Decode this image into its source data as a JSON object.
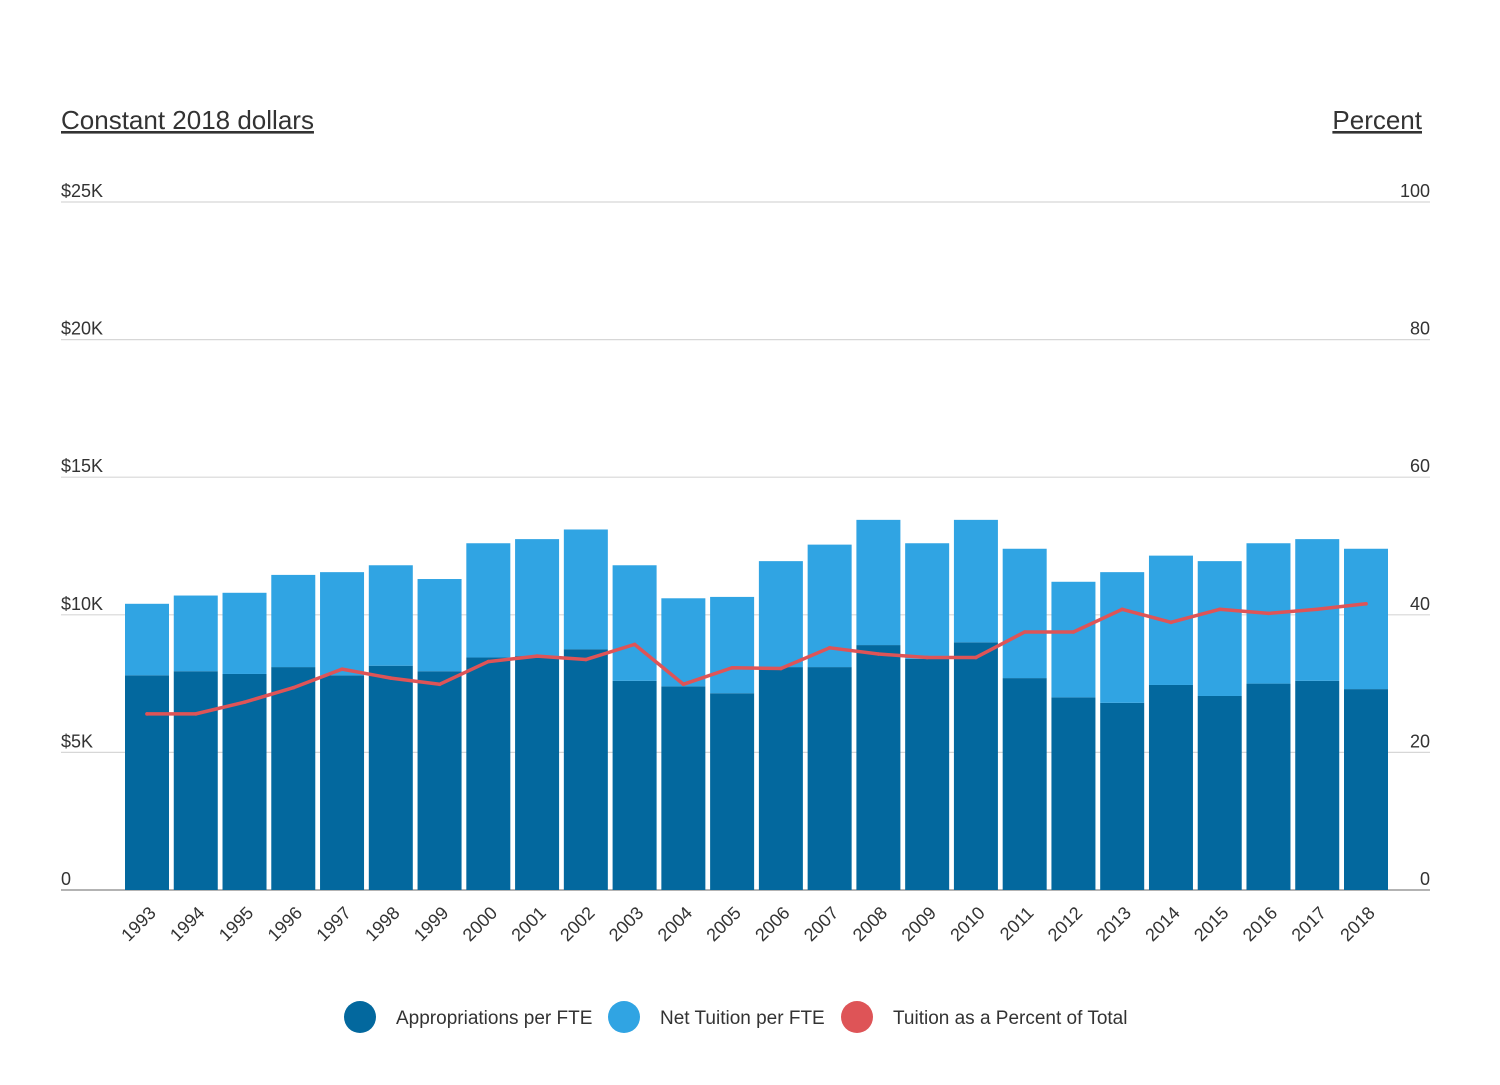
{
  "chart_data": {
    "type": "bar",
    "stacked": true,
    "left_axis_title": "Constant 2018 dollars",
    "right_axis_title": "Percent",
    "left_ticks": [
      "0",
      "$5K",
      "$10K",
      "$15K",
      "$20K",
      "$25K"
    ],
    "right_ticks": [
      "0",
      "20",
      "40",
      "60",
      "80",
      "100"
    ],
    "ylim_left": [
      0,
      25000
    ],
    "ylim_right": [
      0,
      100
    ],
    "grid": true,
    "legend_position": "bottom",
    "categories": [
      "1993",
      "1994",
      "1995",
      "1996",
      "1997",
      "1998",
      "1999",
      "2000",
      "2001",
      "2002",
      "2003",
      "2004",
      "2005",
      "2006",
      "2007",
      "2008",
      "2009",
      "2010",
      "2011",
      "2012",
      "2013",
      "2014",
      "2015",
      "2016",
      "2017",
      "2018"
    ],
    "series": [
      {
        "name": "Appropriations per FTE",
        "kind": "bar",
        "axis": "left",
        "color": "#03689e",
        "values": [
          7800,
          7950,
          7850,
          8100,
          7800,
          8150,
          7950,
          8450,
          8500,
          8750,
          7600,
          7400,
          7150,
          8100,
          8100,
          8900,
          8400,
          9000,
          7700,
          7000,
          6800,
          7450,
          7050,
          7500,
          7600,
          7300
        ]
      },
      {
        "name": "Net Tuition per FTE",
        "kind": "bar",
        "axis": "left",
        "color": "#30a4e3",
        "values": [
          2600,
          2750,
          2950,
          3350,
          3750,
          3650,
          3350,
          4150,
          4250,
          4350,
          4200,
          3200,
          3500,
          3850,
          4450,
          4550,
          4200,
          4450,
          4700,
          4200,
          4750,
          4700,
          4900,
          5100,
          5150,
          5100
        ]
      },
      {
        "name": "Tuition as a Percent of Total",
        "kind": "line",
        "axis": "right",
        "color": "#de5457",
        "values": [
          25.6,
          25.6,
          27.3,
          29.4,
          32.1,
          30.8,
          29.9,
          33.2,
          34.0,
          33.5,
          35.7,
          29.9,
          32.3,
          32.2,
          35.2,
          34.3,
          33.8,
          33.8,
          37.5,
          37.5,
          40.8,
          38.9,
          40.8,
          40.2,
          40.8,
          41.6
        ]
      }
    ]
  }
}
